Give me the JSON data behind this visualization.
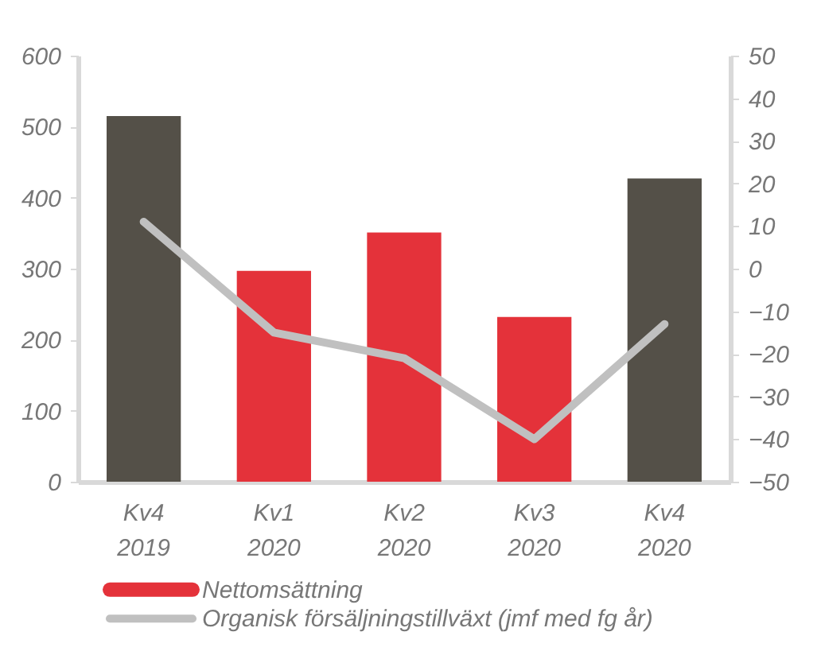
{
  "chart_data": {
    "type": "bar",
    "categories": [
      "Kv4 2019",
      "Kv1 2020",
      "Kv2 2020",
      "Kv3 2020",
      "Kv4 2020"
    ],
    "series": [
      {
        "name": "Nettomsättning",
        "color": "#e4323a",
        "colors": [
          "#545048",
          "#e4323a",
          "#e4323a",
          "#e4323a",
          "#545048"
        ],
        "values": [
          515,
          297,
          351,
          232,
          427
        ]
      },
      {
        "name": "Organisk försäljningstillväxt (jmf med fg år)",
        "type": "line",
        "axis": "y2",
        "color": "#c0c0c0",
        "values": [
          11,
          -15,
          -21,
          -40,
          -13
        ]
      }
    ],
    "ylim": [
      0,
      600
    ],
    "yticks": [
      0,
      100,
      200,
      300,
      400,
      500,
      600
    ],
    "y2lim": [
      -50,
      50
    ],
    "y2ticks": [
      -50,
      -40,
      -30,
      -20,
      -10,
      0,
      10,
      20,
      30,
      40,
      50
    ],
    "grid": false,
    "legend": "bottom"
  }
}
